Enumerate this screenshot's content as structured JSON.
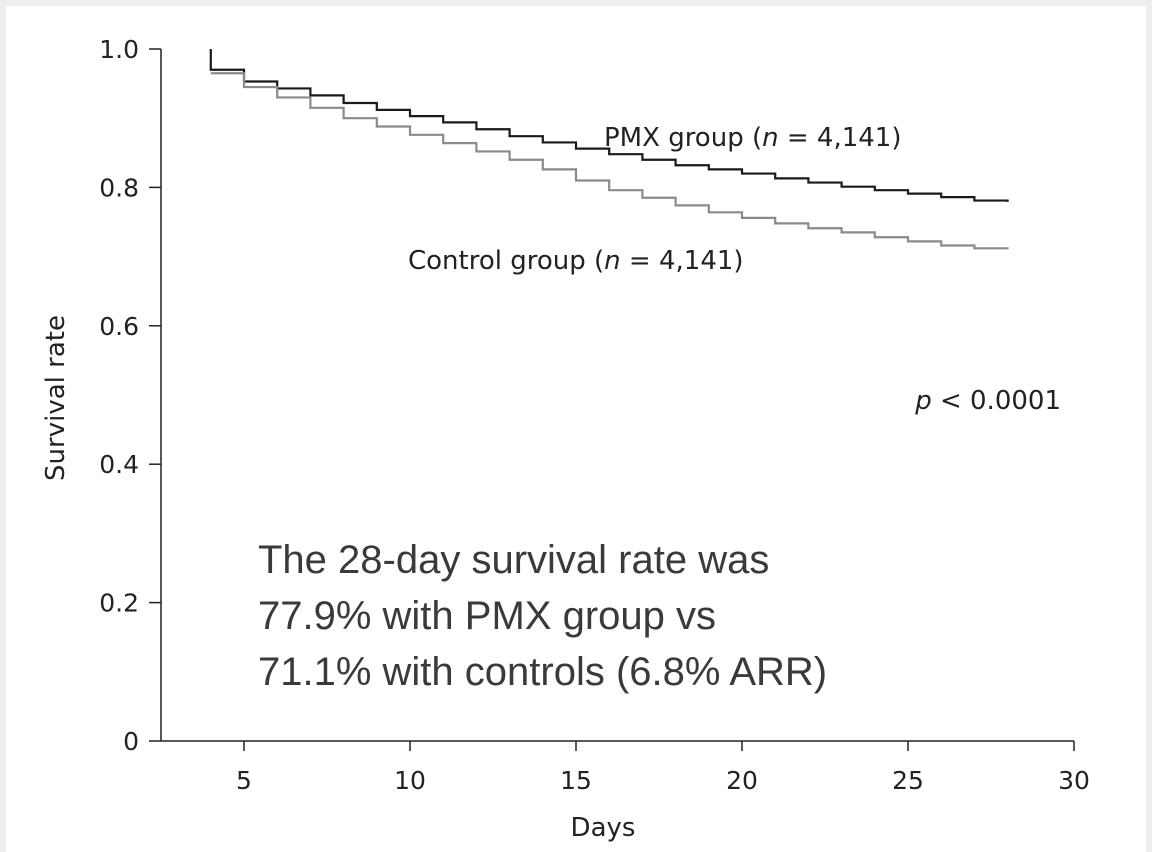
{
  "chart_data": {
    "type": "line",
    "step": true,
    "xlabel": "Days",
    "ylabel": "Survival rate",
    "xlim": [
      2.5,
      30
    ],
    "ylim": [
      0,
      1.0
    ],
    "x_ticks": [
      5,
      10,
      15,
      20,
      25,
      30
    ],
    "x_tick_labels": [
      "5",
      "10",
      "15",
      "20",
      "25",
      "30"
    ],
    "y_ticks": [
      0,
      0.2,
      0.4,
      0.6,
      0.8,
      1.0
    ],
    "y_tick_labels": [
      "0",
      "0.2",
      "0.4",
      "0.6",
      "0.8",
      "1.0"
    ],
    "grid": false,
    "series": [
      {
        "name": "PMX group",
        "label_prefix": "PMX group (",
        "label_var": "n",
        "label_suffix": " = 4,141)",
        "color": "#1a1a1a",
        "x": [
          4,
          4,
          5,
          6,
          7,
          8,
          9,
          10,
          11,
          12,
          13,
          14,
          15,
          16,
          17,
          18,
          19,
          20,
          21,
          22,
          23,
          24,
          25,
          26,
          27,
          28
        ],
        "y": [
          1.0,
          0.97,
          0.953,
          0.943,
          0.933,
          0.922,
          0.912,
          0.903,
          0.894,
          0.884,
          0.874,
          0.865,
          0.856,
          0.848,
          0.84,
          0.832,
          0.826,
          0.82,
          0.813,
          0.807,
          0.801,
          0.796,
          0.791,
          0.786,
          0.781,
          0.779
        ]
      },
      {
        "name": "Control group",
        "label_prefix": "Control group (",
        "label_var": "n",
        "label_suffix": " = 4,141)",
        "color": "#8a8a8a",
        "x": [
          4,
          5,
          6,
          7,
          8,
          9,
          10,
          11,
          12,
          13,
          14,
          15,
          16,
          17,
          18,
          19,
          20,
          21,
          22,
          23,
          24,
          25,
          26,
          27,
          28
        ],
        "y": [
          0.965,
          0.945,
          0.93,
          0.915,
          0.9,
          0.888,
          0.876,
          0.864,
          0.852,
          0.84,
          0.826,
          0.81,
          0.796,
          0.785,
          0.774,
          0.764,
          0.756,
          0.748,
          0.741,
          0.735,
          0.728,
          0.722,
          0.716,
          0.712,
          0.711
        ]
      }
    ],
    "p_value": {
      "var": "p",
      "text": " < 0.0001"
    },
    "annotation": [
      "The 28-day survival rate was",
      "77.9% with PMX group vs",
      "71.1% with controls (6.8% ARR)"
    ]
  }
}
